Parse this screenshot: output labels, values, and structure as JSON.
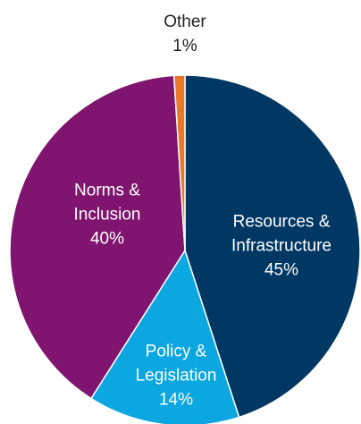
{
  "chart_data": {
    "type": "pie",
    "categories": [
      "Resources & Infrastructure",
      "Policy & Legislation",
      "Norms & Inclusion",
      "Other"
    ],
    "values": [
      45,
      14,
      40,
      1
    ],
    "value_labels": [
      "45%",
      "14%",
      "40%",
      "1%"
    ],
    "colors": [
      "#003763",
      "#0ca6e0",
      "#80156f",
      "#e8782a"
    ]
  }
}
